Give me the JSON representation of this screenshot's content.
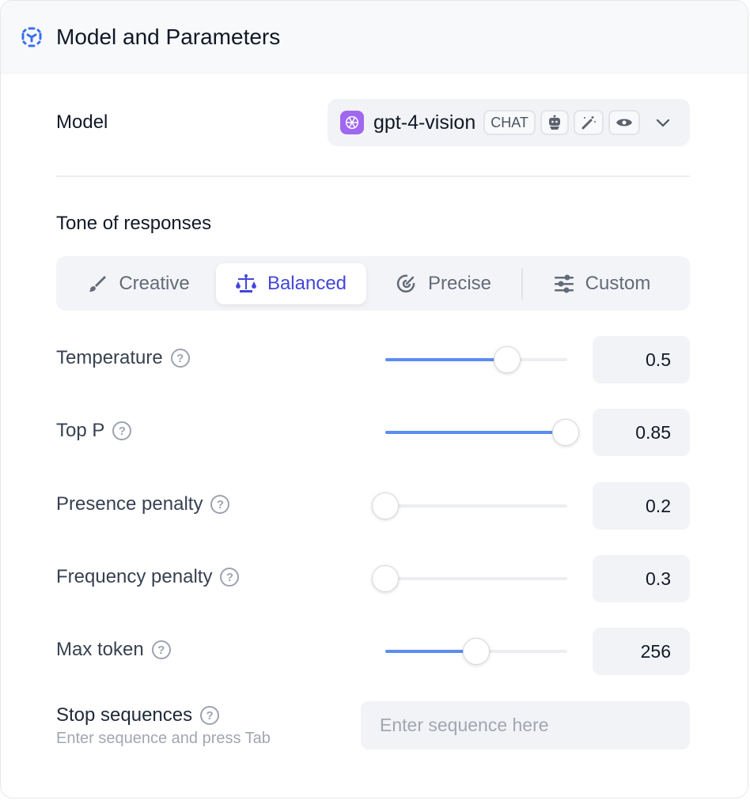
{
  "header": {
    "title": "Model and Parameters",
    "icon": "cube-dashed-icon",
    "accent": "#3b6ef0"
  },
  "model": {
    "label": "Model",
    "name": "gpt-4-vision",
    "badge": "CHAT",
    "capability_icons": [
      "robot-icon",
      "magic-wand-icon",
      "eye-icon"
    ],
    "logo_color": "#a067f0"
  },
  "tone": {
    "label": "Tone of responses",
    "tabs": [
      {
        "label": "Creative",
        "icon": "brush-icon",
        "active": false
      },
      {
        "label": "Balanced",
        "icon": "scale-icon",
        "active": true
      },
      {
        "label": "Precise",
        "icon": "target-icon",
        "active": false
      },
      {
        "label": "Custom",
        "icon": "sliders-icon",
        "active": false
      }
    ]
  },
  "params": [
    {
      "label": "Temperature",
      "value": "0.5",
      "slider_level": 0.67
    },
    {
      "label": "Top P",
      "value": "0.85",
      "slider_level": 0.99
    },
    {
      "label": "Presence penalty",
      "value": "0.2",
      "slider_level": 0
    },
    {
      "label": "Frequency penalty",
      "value": "0.3",
      "slider_level": 0
    },
    {
      "label": "Max token",
      "value": "256",
      "slider_level": 0.5
    }
  ],
  "stop": {
    "label": "Stop sequences",
    "hint": "Enter sequence and press Tab",
    "placeholder": "Enter sequence here"
  },
  "help_glyph": "?"
}
